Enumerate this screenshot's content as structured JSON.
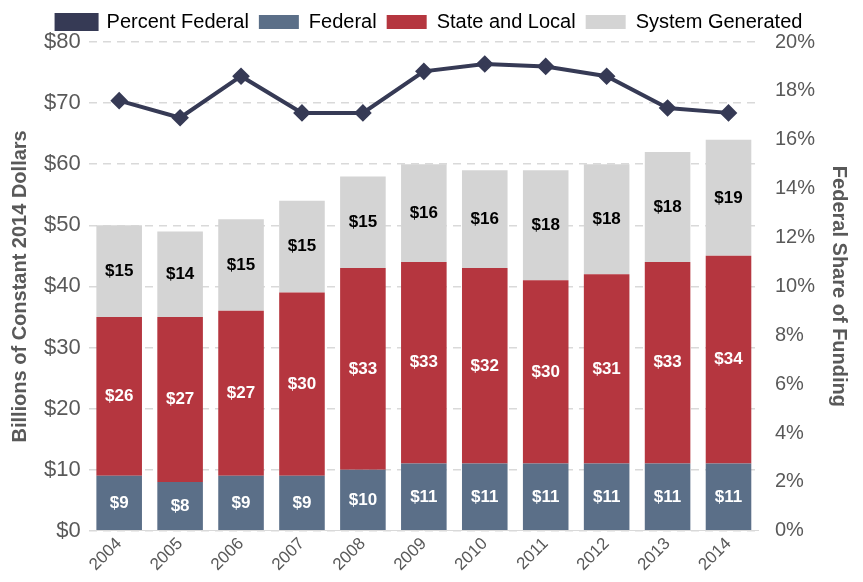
{
  "chart_data": {
    "type": "bar",
    "stacked": true,
    "grid": true,
    "legend": "top",
    "categories": [
      "2004",
      "2005",
      "2006",
      "2007",
      "2008",
      "2009",
      "2010",
      "2011",
      "2012",
      "2013",
      "2014"
    ],
    "y_label": "Billions of Constant 2014 Dollars",
    "y2_label": "Federal Share of Funding",
    "ylim": [
      0,
      80
    ],
    "yticks": [
      {
        "value": 0,
        "label": "$0"
      },
      {
        "value": 10,
        "label": "$10"
      },
      {
        "value": 20,
        "label": "$20"
      },
      {
        "value": 30,
        "label": "$30"
      },
      {
        "value": 40,
        "label": "$40"
      },
      {
        "value": 50,
        "label": "$50"
      },
      {
        "value": 60,
        "label": "$60"
      },
      {
        "value": 70,
        "label": "$70"
      },
      {
        "value": 80,
        "label": "$80"
      }
    ],
    "y2lim": [
      0,
      20
    ],
    "y2ticks": [
      {
        "value": 0,
        "label": "0%"
      },
      {
        "value": 2,
        "label": "2%"
      },
      {
        "value": 4,
        "label": "4%"
      },
      {
        "value": 6,
        "label": "6%"
      },
      {
        "value": 8,
        "label": "8%"
      },
      {
        "value": 10,
        "label": "10%"
      },
      {
        "value": 12,
        "label": "12%"
      },
      {
        "value": 14,
        "label": "14%"
      },
      {
        "value": 16,
        "label": "16%"
      },
      {
        "value": 18,
        "label": "18%"
      },
      {
        "value": 20,
        "label": "20%"
      }
    ],
    "series": [
      {
        "name": "Federal",
        "type": "bar",
        "color": "#5b6f88",
        "data_labels": true,
        "values": [
          9,
          8,
          9,
          9,
          10,
          11,
          11,
          11,
          11,
          11,
          11
        ],
        "value_labels": [
          "$9",
          "$8",
          "$9",
          "$9",
          "$10",
          "$11",
          "$11",
          "$11",
          "$11",
          "$11",
          "$11"
        ]
      },
      {
        "name": "State and Local",
        "type": "bar",
        "color": "#b5363f",
        "data_labels": true,
        "values": [
          26,
          27,
          27,
          30,
          33,
          33,
          32,
          30,
          31,
          33,
          34
        ],
        "value_labels": [
          "$26",
          "$27",
          "$27",
          "$30",
          "$33",
          "$33",
          "$32",
          "$30",
          "$31",
          "$33",
          "$34"
        ]
      },
      {
        "name": "System Generated",
        "type": "bar",
        "color": "#d4d4d4",
        "data_labels": true,
        "values": [
          15,
          14,
          15,
          15,
          15,
          16,
          16,
          18,
          18,
          18,
          19
        ],
        "value_labels": [
          "$15",
          "$14",
          "$15",
          "$15",
          "$15",
          "$16",
          "$16",
          "$18",
          "$18",
          "$18",
          "$19"
        ]
      },
      {
        "name": "Percent Federal",
        "type": "line",
        "axis": "y2",
        "color": "#363a55",
        "marker": "diamond",
        "line_style": "solid",
        "values": [
          17.6,
          16.9,
          18.6,
          17.1,
          17.1,
          18.8,
          19.1,
          19.0,
          18.6,
          17.3,
          17.1
        ]
      }
    ]
  }
}
